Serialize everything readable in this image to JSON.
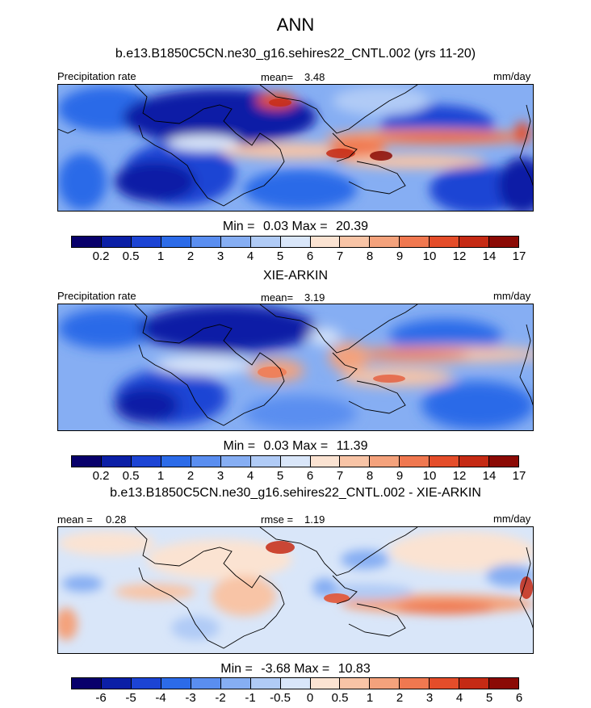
{
  "title": "ANN",
  "panels": [
    {
      "title": "b.e13.B1850C5CN.ne30_g16.sehires22_CNTL.002 (yrs 11-20)",
      "left_label": "Precipitation rate",
      "stat_label": "mean=",
      "stat_value": "3.48",
      "units": "mm/day",
      "min_label": "Min =",
      "min_value": "0.03",
      "max_label": "Max =",
      "max_value": "20.39",
      "colorbar_ticks": [
        "0.2",
        "0.5",
        "1",
        "2",
        "3",
        "4",
        "5",
        "6",
        "7",
        "8",
        "9",
        "10",
        "12",
        "14",
        "17"
      ]
    },
    {
      "title": "XIE-ARKIN",
      "left_label": "Precipitation rate",
      "stat_label": "mean=",
      "stat_value": "3.19",
      "units": "mm/day",
      "min_label": "Min =",
      "min_value": "0.03",
      "max_label": "Max =",
      "max_value": "11.39",
      "colorbar_ticks": [
        "0.2",
        "0.5",
        "1",
        "2",
        "3",
        "4",
        "5",
        "6",
        "7",
        "8",
        "9",
        "10",
        "12",
        "14",
        "17"
      ]
    },
    {
      "title": "b.e13.B1850C5CN.ne30_g16.sehires22_CNTL.002 - XIE-ARKIN",
      "left_label": "mean =",
      "left_value": "0.28",
      "stat_label": "rmse =",
      "stat_value": "1.19",
      "units": "mm/day",
      "min_label": "Min =",
      "min_value": "-3.68",
      "max_label": "Max =",
      "max_value": "10.83",
      "colorbar_ticks": [
        "-6",
        "-5",
        "-4",
        "-3",
        "-2",
        "-1",
        "-0.5",
        "0",
        "0.5",
        "1",
        "2",
        "3",
        "4",
        "5",
        "6"
      ]
    }
  ],
  "colors": {
    "precip_scale": [
      "#08006b",
      "#0b1fa6",
      "#1c44d4",
      "#2c6be8",
      "#5a8ef0",
      "#86aef3",
      "#b0cbf6",
      "#d9e6f9",
      "#fbe3d2",
      "#f8c4a6",
      "#f4a27c",
      "#f07850",
      "#e44d2a",
      "#c52a14",
      "#8b0a05"
    ],
    "diff_scale": [
      "#08006b",
      "#0b1fa6",
      "#1c44d4",
      "#2c6be8",
      "#5a8ef0",
      "#86aef3",
      "#b0cbf6",
      "#d9e6f9",
      "#fbe3d2",
      "#f8c4a6",
      "#f4a27c",
      "#f07850",
      "#e44d2a",
      "#c52a14",
      "#8b0a05"
    ],
    "coastline": "#000000"
  }
}
